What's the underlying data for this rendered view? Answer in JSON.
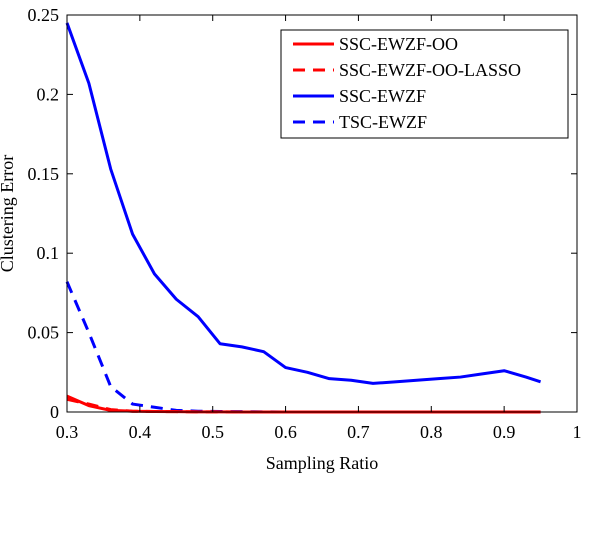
{
  "chart_data": {
    "type": "line",
    "title": "",
    "xlabel": "Sampling Ratio",
    "ylabel": "Clustering Error",
    "xlim": [
      0.3,
      1.0
    ],
    "ylim": [
      0,
      0.25
    ],
    "xticks": [
      "0.3",
      "0.4",
      "0.5",
      "0.6",
      "0.7",
      "0.8",
      "0.9",
      "1"
    ],
    "xtick_values": [
      0.3,
      0.4,
      0.5,
      0.6,
      0.7,
      0.8,
      0.9,
      1.0
    ],
    "yticks": [
      "0",
      "0.05",
      "0.1",
      "0.15",
      "0.2",
      "0.25"
    ],
    "ytick_values": [
      0,
      0.05,
      0.1,
      0.15,
      0.2,
      0.25
    ],
    "grid": false,
    "legend_position": "top-right",
    "x": [
      0.3,
      0.33,
      0.36,
      0.39,
      0.42,
      0.45,
      0.48,
      0.51,
      0.54,
      0.57,
      0.6,
      0.63,
      0.66,
      0.69,
      0.72,
      0.75,
      0.78,
      0.81,
      0.84,
      0.87,
      0.9,
      0.93,
      0.95
    ],
    "series": [
      {
        "name": "SSC-EWZF-OO",
        "color": "#ff0000",
        "dash": "solid",
        "values": [
          0.01,
          0.004,
          0.001,
          0.0005,
          0.0003,
          0.0002,
          0.0001,
          0.0001,
          0,
          0,
          0,
          0,
          0,
          0,
          0,
          0,
          0,
          0,
          0,
          0,
          0,
          0,
          0
        ]
      },
      {
        "name": "SSC-EWZF-OO-LASSO",
        "color": "#ff0000",
        "dash": "dashed",
        "values": [
          0.008,
          0.005,
          0.0015,
          0.0005,
          0.0003,
          0.0002,
          0.0001,
          0.0001,
          0,
          0,
          0,
          0,
          0,
          0,
          0,
          0,
          0,
          0,
          0,
          0,
          0,
          0,
          0
        ]
      },
      {
        "name": "SSC-EWZF",
        "color": "#0000ff",
        "dash": "solid",
        "values": [
          0.245,
          0.207,
          0.153,
          0.112,
          0.087,
          0.071,
          0.06,
          0.043,
          0.041,
          0.038,
          0.028,
          0.025,
          0.021,
          0.02,
          0.018,
          0.019,
          0.02,
          0.021,
          0.022,
          0.024,
          0.026,
          0.022,
          0.019
        ]
      },
      {
        "name": "TSC-EWZF",
        "color": "#0000ff",
        "dash": "dashed",
        "values": [
          0.082,
          0.05,
          0.016,
          0.005,
          0.003,
          0.001,
          0.0005,
          0.0003,
          0.0002,
          0.0001,
          0,
          0,
          0,
          0,
          0,
          0,
          0,
          0,
          0,
          0,
          0,
          0,
          0
        ]
      }
    ]
  }
}
